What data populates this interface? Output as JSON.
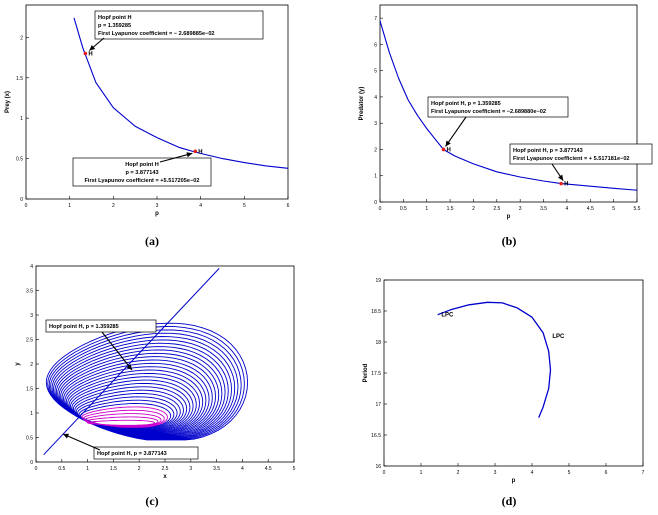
{
  "captions": {
    "a": "(a)",
    "b": "(b)",
    "c": "(c)",
    "d": "(d)"
  },
  "colors": {
    "curve": "#0000cc",
    "point": "#e8201a",
    "cycle_inner": "#cc00cc",
    "axis": "#000000"
  },
  "chart_data": [
    {
      "id": "a",
      "type": "line",
      "xlabel": "p",
      "ylabel": "Prey (x)",
      "xlim": [
        0,
        6
      ],
      "ylim": [
        0,
        2.4
      ],
      "xticks": [
        "0",
        "1",
        "2",
        "3",
        "4",
        "5",
        "6"
      ],
      "yticks": [
        "0",
        "0.5",
        "1",
        "1.5",
        "2"
      ],
      "series": [
        {
          "x": [
            1.1,
            1.3,
            1.6,
            2.0,
            2.5,
            3.0,
            3.5,
            3.877,
            4.5,
            5.0,
            5.5,
            6.0
          ],
          "y": [
            2.24,
            1.87,
            1.44,
            1.13,
            0.9,
            0.76,
            0.64,
            0.58,
            0.5,
            0.45,
            0.41,
            0.38
          ]
        }
      ],
      "points": [
        {
          "x": 1.359285,
          "y": 1.8,
          "label": "H"
        },
        {
          "x": 3.877143,
          "y": 0.59,
          "label": "H"
        }
      ],
      "annotations": [
        {
          "lines": [
            "Hopf point H",
            "p = 1.359285",
            "First Lyapunov coefficient = − 2.689885e−02"
          ]
        },
        {
          "lines": [
            "Hopf point H",
            "p = 3.877143",
            "First Lyapunov coefficient = +5.517205e−02"
          ]
        }
      ]
    },
    {
      "id": "b",
      "type": "line",
      "xlabel": "p",
      "ylabel": "Predator (y)",
      "xlim": [
        0,
        5.5
      ],
      "ylim": [
        0,
        7.5
      ],
      "xticks": [
        "0",
        "0.5",
        "1",
        "1.5",
        "2",
        "2.5",
        "3",
        "3.5",
        "4",
        "4.5",
        "5",
        "5.5"
      ],
      "yticks": [
        "0",
        "1",
        "2",
        "3",
        "4",
        "5",
        "6",
        "7"
      ],
      "series": [
        {
          "x": [
            0,
            0.2,
            0.4,
            0.6,
            0.8,
            1.0,
            1.2,
            1.359,
            1.6,
            2.0,
            2.5,
            3.0,
            3.5,
            3.877,
            4.5,
            5.0,
            5.5
          ],
          "y": [
            6.9,
            5.7,
            4.7,
            3.9,
            3.3,
            2.8,
            2.35,
            2.0,
            1.75,
            1.45,
            1.15,
            0.95,
            0.8,
            0.7,
            0.6,
            0.52,
            0.45
          ]
        }
      ],
      "points": [
        {
          "x": 1.359285,
          "y": 2.0,
          "label": "H"
        },
        {
          "x": 3.877143,
          "y": 0.7,
          "label": "H"
        }
      ],
      "annotations": [
        {
          "lines": [
            "Hopf point H, p = 1.359285",
            "First Lyapunov coefficient = −2.689880e−02"
          ]
        },
        {
          "lines": [
            "Hopf point H,  p = 3.877143",
            "First Lyapunov coefficient = + 5.517181e−02"
          ]
        }
      ]
    },
    {
      "id": "c",
      "type": "line",
      "xlabel": "x",
      "ylabel": "y",
      "xlim": [
        0,
        5
      ],
      "ylim": [
        0,
        4
      ],
      "xticks": [
        "0",
        "0.5",
        "1",
        "1.5",
        "2",
        "2.5",
        "3",
        "3.5",
        "4",
        "4.5",
        "5"
      ],
      "yticks": [
        "0",
        "0.5",
        "1",
        "1.5",
        "2",
        "2.5",
        "3",
        "3.5",
        "4"
      ],
      "equilibrium_curve": {
        "x": [
          0.15,
          3.55
        ],
        "y": [
          0.15,
          3.95
        ]
      },
      "limit_cycles": {
        "count": 30,
        "x_min": [
          0.2,
          1.0
        ],
        "x_max": [
          4.1,
          2.3
        ],
        "y_min": [
          0.45,
          0.75
        ],
        "y_max": [
          2.8,
          0.85
        ]
      },
      "annotations": [
        {
          "lines": [
            "Hopf point H,  p = 1.359285"
          ]
        },
        {
          "lines": [
            "Hopf point H,  p = 3.877143"
          ]
        }
      ]
    },
    {
      "id": "d",
      "type": "line",
      "xlabel": "p",
      "ylabel": "Period",
      "xlim": [
        0,
        7
      ],
      "ylim": [
        16,
        19
      ],
      "xticks": [
        "0",
        "1",
        "2",
        "3",
        "4",
        "5",
        "6",
        "7"
      ],
      "yticks": [
        "16",
        "16.5",
        "17",
        "17.5",
        "18",
        "18.5",
        "19"
      ],
      "series": [
        {
          "x": [
            1.45,
            1.8,
            2.3,
            2.8,
            3.2,
            3.6,
            4.0,
            4.3,
            4.45,
            4.5,
            4.45,
            4.3,
            4.18
          ],
          "y": [
            18.44,
            18.52,
            18.6,
            18.64,
            18.63,
            18.55,
            18.4,
            18.15,
            17.85,
            17.55,
            17.25,
            16.95,
            16.78
          ]
        }
      ],
      "labels": [
        {
          "text": "LPC",
          "x": 1.55,
          "y": 18.44
        },
        {
          "text": "LPC",
          "x": 4.55,
          "y": 18.1
        }
      ]
    }
  ]
}
